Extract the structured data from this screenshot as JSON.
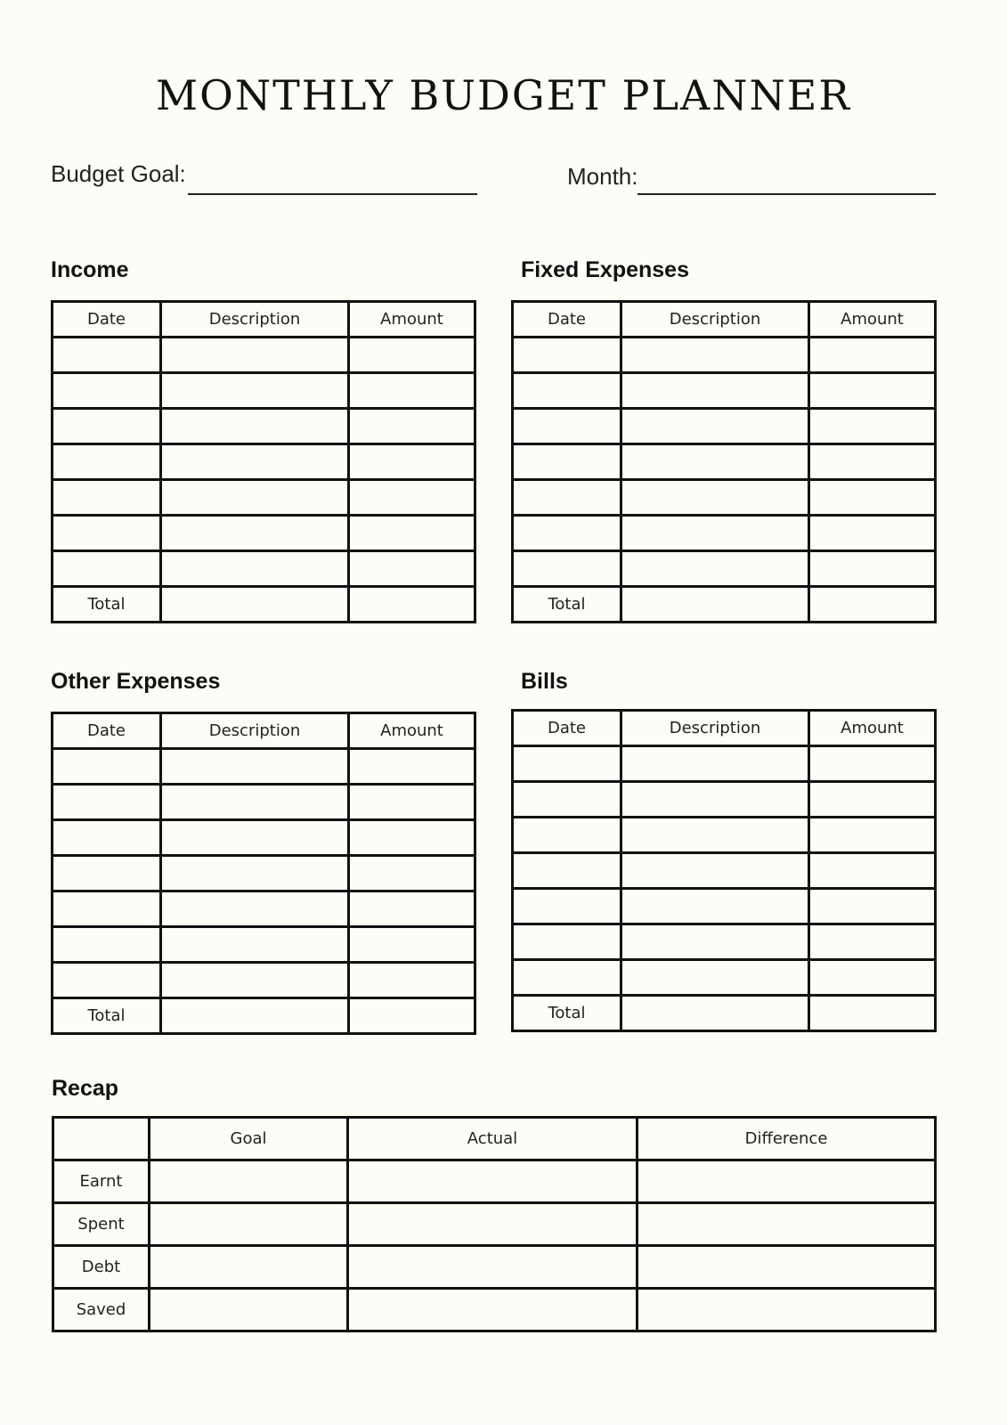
{
  "title": "MONTHLY BUDGET PLANNER",
  "fields": {
    "budget_goal_label": "Budget Goal:",
    "budget_goal_value": "",
    "month_label": "Month:",
    "month_value": ""
  },
  "sections": {
    "income": {
      "heading": "Income",
      "columns": [
        "Date",
        "Description",
        "Amount"
      ],
      "rows": [
        "",
        "",
        "",
        "",
        "",
        "",
        "",
        "Total"
      ]
    },
    "fixed_expenses": {
      "heading": "Fixed Expenses",
      "columns": [
        "Date",
        "Description",
        "Amount"
      ],
      "rows": [
        "",
        "",
        "",
        "",
        "",
        "",
        "",
        "Total"
      ]
    },
    "other_expenses": {
      "heading": "Other Expenses",
      "columns": [
        "Date",
        "Description",
        "Amount"
      ],
      "rows": [
        "",
        "",
        "",
        "",
        "",
        "",
        "",
        "Total"
      ]
    },
    "bills": {
      "heading": "Bills",
      "columns": [
        "Date",
        "Description",
        "Amount"
      ],
      "rows": [
        "",
        "",
        "",
        "",
        "",
        "",
        "",
        "Total"
      ]
    }
  },
  "recap": {
    "heading": "Recap",
    "columns": [
      "",
      "Goal",
      "Actual",
      "Difference"
    ],
    "rows": [
      "Earnt",
      "Spent",
      "Debt",
      "Saved"
    ]
  }
}
